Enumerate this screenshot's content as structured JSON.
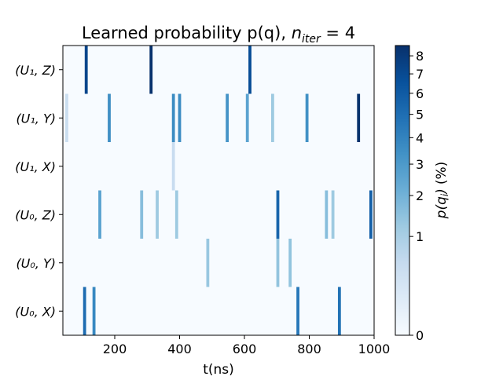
{
  "chart_data": {
    "type": "heatmap",
    "title": "Learned probability p(q), ",
    "title_math": {
      "base": "n",
      "sub": "iter",
      "rest": " = 4"
    },
    "xlabel": "t(ns)",
    "xlim": [
      40,
      1000
    ],
    "xticks": [
      200,
      400,
      600,
      800,
      1000
    ],
    "xtick_labels": [
      "200",
      "400",
      "600",
      "800",
      "1000"
    ],
    "rows": [
      {
        "label": "(U₁, Z)"
      },
      {
        "label": "(U₁, Y)"
      },
      {
        "label": "(U₁, X)"
      },
      {
        "label": "(U₀, Z)"
      },
      {
        "label": "(U₀, Y)"
      },
      {
        "label": "(U₀, X)"
      }
    ],
    "cells": [
      {
        "row": 0,
        "t": 112,
        "p": 7.2
      },
      {
        "row": 0,
        "t": 312,
        "p": 8.5
      },
      {
        "row": 0,
        "t": 617,
        "p": 6.8
      },
      {
        "row": 1,
        "t": 52,
        "p": 0.45
      },
      {
        "row": 1,
        "t": 183,
        "p": 3.5
      },
      {
        "row": 1,
        "t": 381,
        "p": 3.6
      },
      {
        "row": 1,
        "t": 400,
        "p": 3.6
      },
      {
        "row": 1,
        "t": 547,
        "p": 3.3
      },
      {
        "row": 1,
        "t": 609,
        "p": 2.6
      },
      {
        "row": 1,
        "t": 687,
        "p": 1.2
      },
      {
        "row": 1,
        "t": 793,
        "p": 3.4
      },
      {
        "row": 1,
        "t": 952,
        "p": 8.5
      },
      {
        "row": 2,
        "t": 381,
        "p": 0.5
      },
      {
        "row": 3,
        "t": 154,
        "p": 2.6
      },
      {
        "row": 3,
        "t": 283,
        "p": 1.6
      },
      {
        "row": 3,
        "t": 331,
        "p": 1.2
      },
      {
        "row": 3,
        "t": 391,
        "p": 1.2
      },
      {
        "row": 3,
        "t": 703,
        "p": 5.5
      },
      {
        "row": 3,
        "t": 853,
        "p": 1.6
      },
      {
        "row": 3,
        "t": 873,
        "p": 1.2
      },
      {
        "row": 3,
        "t": 990,
        "p": 5.8
      },
      {
        "row": 4,
        "t": 487,
        "p": 1.3
      },
      {
        "row": 4,
        "t": 703,
        "p": 1.4
      },
      {
        "row": 4,
        "t": 741,
        "p": 1.4
      },
      {
        "row": 5,
        "t": 107,
        "p": 5.1
      },
      {
        "row": 5,
        "t": 136,
        "p": 3.8
      },
      {
        "row": 5,
        "t": 765,
        "p": 4.5
      },
      {
        "row": 5,
        "t": 893,
        "p": 4.8
      }
    ],
    "colorbar": {
      "label": "(%)",
      "label_math": {
        "base": "p(q",
        "sub": "i",
        "rest": ")"
      },
      "scale": "sqrt",
      "range": [
        0,
        8.6
      ],
      "ticks": [
        0,
        1,
        2,
        3,
        4,
        5,
        6,
        7,
        8
      ],
      "tick_labels": [
        "0",
        "1",
        "2",
        "3",
        "4",
        "5",
        "6",
        "7",
        "8"
      ],
      "colormap": "Blues",
      "colors": [
        "#f7fbff",
        "#deebf7",
        "#c6dbef",
        "#9ecae1",
        "#6baed6",
        "#4292c6",
        "#2171b5",
        "#08519c",
        "#08306b"
      ]
    }
  }
}
